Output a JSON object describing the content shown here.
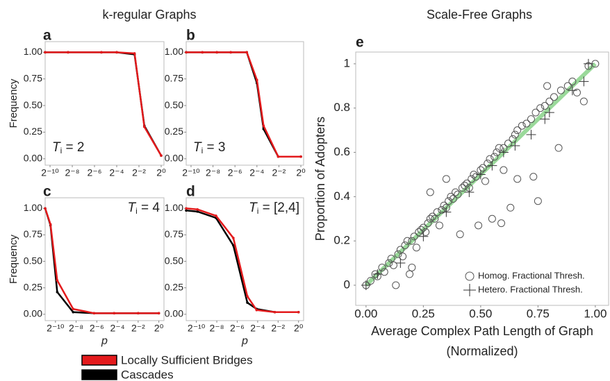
{
  "group_titles": [
    "k-regular Graphs",
    "Scale-Free Graphs"
  ],
  "legend": [
    {
      "name": "Locally Sufficient Bridges",
      "color": "#e31a1c"
    },
    {
      "name": "Cascades",
      "color": "#000000"
    }
  ],
  "chart_data": [
    {
      "type": "line",
      "panel": "a",
      "ylabel": "Frequency",
      "annotation": [
        "T",
        "i",
        " = 2"
      ],
      "annotation_corner": "bottom-left",
      "xscale": "log2",
      "xlim": [
        0.00072,
        1.19
      ],
      "ylim": [
        -0.06,
        1.1
      ],
      "xticks": [
        {
          "value": 0.0009765625,
          "label": "2⁻¹⁰"
        },
        {
          "value": 0.00390625,
          "label": "2⁻⁸"
        },
        {
          "value": 0.015625,
          "label": "2⁻⁶"
        },
        {
          "value": 0.0625,
          "label": "2⁻⁴"
        },
        {
          "value": 0.25,
          "label": "2⁻²"
        },
        {
          "value": 1,
          "label": "2⁰"
        }
      ],
      "yticks": [
        {
          "value": 0,
          "label": "0.00"
        },
        {
          "value": 0.25,
          "label": "0.25"
        },
        {
          "value": 0.5,
          "label": "0.50"
        },
        {
          "value": 0.75,
          "label": "0.75"
        },
        {
          "value": 1,
          "label": "1.00"
        }
      ],
      "x": [
        0.00072,
        0.003,
        0.024,
        0.0625,
        0.19,
        0.35,
        1
      ],
      "series": [
        {
          "color": "#000000",
          "values": [
            1,
            1,
            1,
            1,
            0.98,
            0.31,
            0.03
          ]
        },
        {
          "color": "#e31a1c",
          "values": [
            1,
            1,
            1,
            1,
            0.99,
            0.3,
            0.03
          ]
        }
      ]
    },
    {
      "type": "line",
      "panel": "b",
      "annotation": [
        "T",
        "i",
        " = 3"
      ],
      "annotation_corner": "bottom-left",
      "xscale": "log2",
      "xlim": [
        0.00072,
        1.19
      ],
      "ylim": [
        -0.06,
        1.1
      ],
      "xticks": [
        {
          "value": 0.0009765625,
          "label": "2⁻¹⁰"
        },
        {
          "value": 0.00390625,
          "label": "2⁻⁸"
        },
        {
          "value": 0.015625,
          "label": "2⁻⁶"
        },
        {
          "value": 0.0625,
          "label": "2⁻⁴"
        },
        {
          "value": 0.25,
          "label": "2⁻²"
        },
        {
          "value": 1,
          "label": "2⁰"
        }
      ],
      "yticks": [
        {
          "value": 0,
          "label": "0.00"
        },
        {
          "value": 0.25,
          "label": "0.25"
        },
        {
          "value": 0.5,
          "label": "0.50"
        },
        {
          "value": 0.75,
          "label": "0.75"
        },
        {
          "value": 1,
          "label": "1.00"
        }
      ],
      "x": [
        0.00072,
        0.002,
        0.005,
        0.012,
        0.033,
        0.0625,
        0.095,
        0.24,
        1
      ],
      "series": [
        {
          "color": "#000000",
          "values": [
            1,
            1,
            1,
            1,
            1,
            0.71,
            0.28,
            0.02,
            0.02
          ]
        },
        {
          "color": "#e31a1c",
          "values": [
            1,
            1,
            1,
            1,
            1,
            0.74,
            0.31,
            0.02,
            0.02
          ]
        }
      ]
    },
    {
      "type": "line",
      "panel": "c",
      "ylabel": "Frequency",
      "xlabel": "p",
      "annotation": [
        "T",
        "i",
        " = 4"
      ],
      "annotation_corner": "top-right",
      "xscale": "log2",
      "xlim": [
        0.00049,
        1.41
      ],
      "ylim": [
        -0.06,
        1.1
      ],
      "xticks": [
        {
          "value": 0.0009765625,
          "label": "2⁻¹⁰"
        },
        {
          "value": 0.00390625,
          "label": "2⁻⁸"
        },
        {
          "value": 0.015625,
          "label": "2⁻⁶"
        },
        {
          "value": 0.0625,
          "label": "2⁻⁴"
        },
        {
          "value": 0.25,
          "label": "2⁻²"
        },
        {
          "value": 1,
          "label": "2⁰"
        }
      ],
      "yticks": [
        {
          "value": 0,
          "label": "0.00"
        },
        {
          "value": 0.25,
          "label": "0.25"
        },
        {
          "value": 0.5,
          "label": "0.50"
        },
        {
          "value": 0.75,
          "label": "0.75"
        },
        {
          "value": 1,
          "label": "1.00"
        }
      ],
      "x": [
        0.00049,
        0.0007,
        0.0011,
        0.0032,
        0.013,
        0.05,
        0.25,
        1
      ],
      "series": [
        {
          "color": "#000000",
          "values": [
            1,
            0.84,
            0.21,
            0.02,
            0.01,
            0.01,
            0.01,
            0.01
          ]
        },
        {
          "color": "#e31a1c",
          "values": [
            1,
            0.85,
            0.32,
            0.05,
            0.01,
            0.01,
            0.01,
            0.01
          ]
        }
      ]
    },
    {
      "type": "line",
      "panel": "d",
      "xlabel": "p",
      "annotation": [
        "T",
        "i",
        " = [2,4]"
      ],
      "annotation_corner": "top-right",
      "xscale": "log2",
      "xlim": [
        0.00049,
        1.41
      ],
      "ylim": [
        -0.06,
        1.1
      ],
      "xticks": [
        {
          "value": 0.0009765625,
          "label": "2⁻¹⁰"
        },
        {
          "value": 0.00390625,
          "label": "2⁻⁸"
        },
        {
          "value": 0.015625,
          "label": "2⁻⁶"
        },
        {
          "value": 0.0625,
          "label": "2⁻⁴"
        },
        {
          "value": 0.25,
          "label": "2⁻²"
        },
        {
          "value": 1,
          "label": "2⁰"
        }
      ],
      "yticks": [
        {
          "value": 0,
          "label": "0.00"
        },
        {
          "value": 0.25,
          "label": "0.25"
        },
        {
          "value": 0.5,
          "label": "0.50"
        },
        {
          "value": 0.75,
          "label": "0.75"
        },
        {
          "value": 1,
          "label": "1.00"
        }
      ],
      "x": [
        0.00049,
        0.00105,
        0.0037,
        0.012,
        0.031,
        0.058,
        0.2,
        1
      ],
      "series": [
        {
          "color": "#000000",
          "values": [
            0.98,
            0.97,
            0.91,
            0.65,
            0.11,
            0.05,
            0.02,
            0.02
          ]
        },
        {
          "color": "#e31a1c",
          "values": [
            1,
            0.99,
            0.93,
            0.72,
            0.17,
            0.04,
            0.02,
            0.02
          ]
        }
      ]
    },
    {
      "type": "scatter",
      "panel": "e",
      "xlabel": [
        "Average Complex Path Length of Graph",
        "(Normalized)"
      ],
      "ylabel": "Proportion of Adopters",
      "legend": "bottom-right",
      "xlim": [
        -0.045,
        1.058
      ],
      "ylim": [
        -0.091,
        1.053
      ],
      "xticks": [
        {
          "value": 0,
          "label": "0.00"
        },
        {
          "value": 0.25,
          "label": "0.25"
        },
        {
          "value": 0.5,
          "label": "0.50"
        },
        {
          "value": 0.75,
          "label": "0.75"
        },
        {
          "value": 1,
          "label": "1.00"
        }
      ],
      "yticks": [
        0,
        0.2,
        0.4,
        0.6,
        0.8,
        1
      ],
      "fit": {
        "color": "#9ad99a",
        "x": [
          0,
          1
        ],
        "values": [
          0,
          1
        ]
      },
      "series": [
        {
          "name": "Homog. Fractional Thresh.",
          "marker": "circle",
          "color": "#555555",
          "x": [
            0,
            0.02,
            0.04,
            0.05,
            0.07,
            0.08,
            0.1,
            0.11,
            0.12,
            0.13,
            0.14,
            0.15,
            0.16,
            0.17,
            0.18,
            0.19,
            0.2,
            0.21,
            0.22,
            0.23,
            0.24,
            0.25,
            0.26,
            0.27,
            0.28,
            0.29,
            0.3,
            0.31,
            0.32,
            0.33,
            0.34,
            0.35,
            0.36,
            0.37,
            0.38,
            0.39,
            0.4,
            0.41,
            0.42,
            0.43,
            0.44,
            0.45,
            0.46,
            0.47,
            0.48,
            0.49,
            0.5,
            0.51,
            0.52,
            0.53,
            0.54,
            0.55,
            0.56,
            0.57,
            0.58,
            0.59,
            0.6,
            0.62,
            0.63,
            0.64,
            0.65,
            0.66,
            0.68,
            0.7,
            0.72,
            0.73,
            0.74,
            0.75,
            0.76,
            0.78,
            0.79,
            0.8,
            0.82,
            0.84,
            0.85,
            0.88,
            0.9,
            0.92,
            0.95,
            0.97,
            1,
            0.28,
            0.35,
            0.2,
            0.6,
            0.66
          ],
          "values": [
            0,
            0.02,
            0.05,
            0.04,
            0.08,
            0.06,
            0.1,
            0.12,
            0.09,
            0,
            0.14,
            0.16,
            0.13,
            0.18,
            0.2,
            0.05,
            0.2,
            0.22,
            0.17,
            0.24,
            0.25,
            0.26,
            0.24,
            0.28,
            0.3,
            0.31,
            0.3,
            0.33,
            0.27,
            0.34,
            0.36,
            0.35,
            0.38,
            0.4,
            0.39,
            0.42,
            0.41,
            0.23,
            0.44,
            0.45,
            0.46,
            0.44,
            0.48,
            0.5,
            0.49,
            0.27,
            0.52,
            0.53,
            0.47,
            0.55,
            0.57,
            0.3,
            0.58,
            0.6,
            0.62,
            0.28,
            0.62,
            0.64,
            0.35,
            0.66,
            0.68,
            0.7,
            0.72,
            0.73,
            0.75,
            0.49,
            0.78,
            0.38,
            0.8,
            0.81,
            0.9,
            0.83,
            0.85,
            0.62,
            0.88,
            0.9,
            0.92,
            0.87,
            0.83,
            0.99,
            1,
            0.42,
            0.48,
            0.08,
            0.52,
            0.48
          ]
        },
        {
          "name": "Hetero. Fractional Thresh.",
          "marker": "cross",
          "color": "#333333",
          "x": [
            0,
            0.05,
            0.15,
            0.25,
            0.35,
            0.45,
            0.5,
            0.55,
            0.6,
            0.65,
            0.72,
            0.78,
            0.8,
            0.9,
            0.95,
            0.97
          ],
          "values": [
            0,
            0.05,
            0.1,
            0.22,
            0.33,
            0.42,
            0.5,
            0.54,
            0.6,
            0.63,
            0.68,
            0.75,
            0.78,
            0.88,
            0.92,
            1
          ]
        }
      ]
    }
  ]
}
